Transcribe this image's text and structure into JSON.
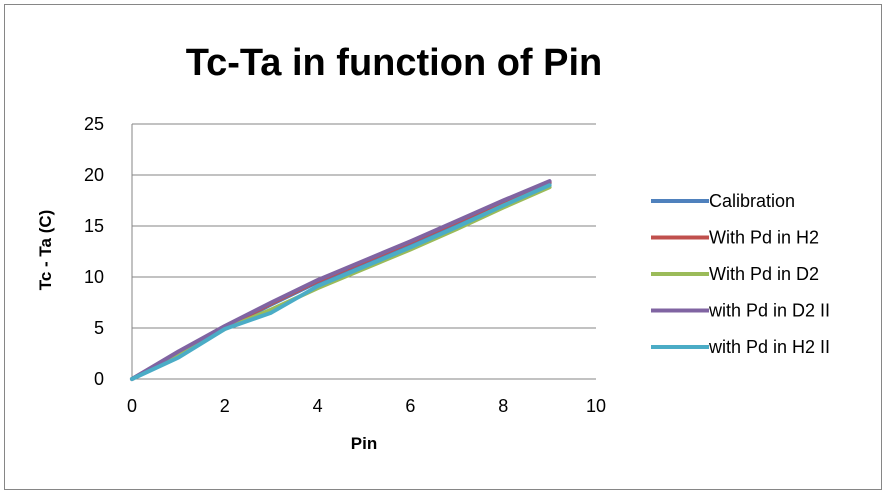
{
  "chart_data": {
    "type": "line",
    "title": "Tc-Ta in function of Pin",
    "xlabel": "Pin",
    "ylabel": "Tc - Ta  (C)",
    "xlim": [
      0,
      10
    ],
    "ylim": [
      0,
      25
    ],
    "xticks": [
      0,
      2,
      4,
      6,
      8,
      10
    ],
    "yticks": [
      0,
      5,
      10,
      15,
      20,
      25
    ],
    "grid": "horizontal",
    "legend_position": "right",
    "series": [
      {
        "name": "Calibration",
        "color": "#4F81BD",
        "x": [
          0,
          1,
          2,
          3,
          4,
          5,
          6,
          7,
          8,
          9
        ],
        "y": [
          0,
          2.5,
          5.0,
          7.3,
          9.5,
          11.4,
          13.3,
          15.3,
          17.3,
          19.2
        ]
      },
      {
        "name": "With Pd in H2",
        "color": "#C0504D",
        "x": [
          0,
          1,
          2,
          3,
          4,
          5,
          6,
          7,
          8,
          9
        ],
        "y": [
          0,
          2.6,
          5.1,
          7.4,
          9.6,
          11.5,
          13.4,
          15.4,
          17.4,
          19.3
        ]
      },
      {
        "name": "With Pd in D2",
        "color": "#9BBB59",
        "x": [
          0,
          1,
          2,
          3,
          4,
          5,
          6,
          7,
          8,
          9
        ],
        "y": [
          0,
          2.3,
          4.9,
          6.8,
          8.9,
          10.8,
          12.7,
          14.7,
          16.8,
          18.8
        ]
      },
      {
        "name": "with Pd in D2 II",
        "color": "#8064A2",
        "x": [
          0,
          1,
          2,
          3,
          4,
          5,
          6,
          7,
          8,
          9
        ],
        "y": [
          0,
          2.7,
          5.2,
          7.5,
          9.7,
          11.6,
          13.5,
          15.5,
          17.5,
          19.4
        ]
      },
      {
        "name": "with Pd in H2 II",
        "color": "#4BACC6",
        "x": [
          0,
          1,
          2,
          3,
          4,
          5,
          6,
          7,
          8,
          9
        ],
        "y": [
          0,
          2.1,
          4.9,
          6.5,
          9.1,
          11.0,
          12.9,
          14.9,
          17.0,
          19.0
        ]
      }
    ]
  }
}
